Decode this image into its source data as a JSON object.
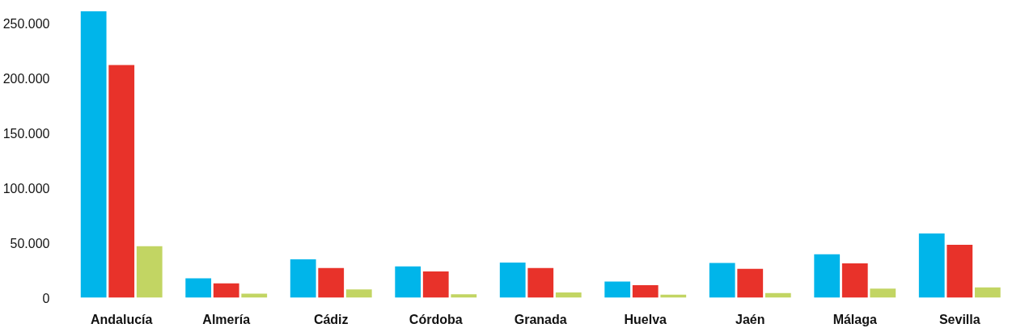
{
  "chart_data": {
    "type": "bar",
    "categories": [
      "Andalucía",
      "Almería",
      "Cádiz",
      "Córdoba",
      "Granada",
      "Huelva",
      "Jaén",
      "Málaga",
      "Sevilla"
    ],
    "series": [
      {
        "color": "#00b5ea",
        "values": [
          261000,
          17600,
          35000,
          28600,
          32000,
          14700,
          31600,
          39500,
          58600
        ]
      },
      {
        "color": "#e8322a",
        "values": [
          212000,
          13000,
          27000,
          24000,
          27000,
          11500,
          26400,
          31300,
          48300
        ]
      },
      {
        "color": "#c2d563",
        "values": [
          47000,
          3700,
          7600,
          3200,
          4800,
          2700,
          4300,
          8200,
          9400
        ]
      }
    ],
    "ylim": [
      0,
      265000
    ],
    "yticks": [
      {
        "value": 0,
        "label": "0"
      },
      {
        "value": 50000,
        "label": "50.000"
      },
      {
        "value": 100000,
        "label": "100.000"
      },
      {
        "value": 150000,
        "label": "150.000"
      },
      {
        "value": 200000,
        "label": "200.000"
      },
      {
        "value": 250000,
        "label": "250.000"
      }
    ],
    "grid": false
  }
}
